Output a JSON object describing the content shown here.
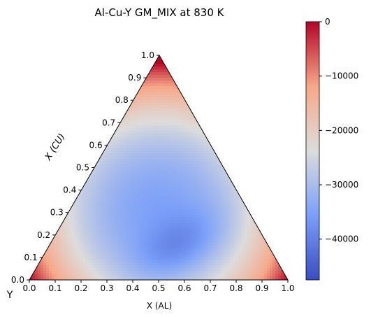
{
  "chart_data": {
    "type": "heatmap",
    "title": "Al-Cu-Y GM_MIX at 830 K",
    "xlabel": "X (AL)",
    "ylabel": "X (CU)",
    "corner_label": "Y",
    "x_ticks": [
      "0.0",
      "0.1",
      "0.2",
      "0.3",
      "0.4",
      "0.5",
      "0.6",
      "0.7",
      "0.8",
      "0.9",
      "1.0"
    ],
    "y_ticks": [
      "0.0",
      "0.1",
      "0.2",
      "0.3",
      "0.4",
      "0.5",
      "0.6",
      "0.7",
      "0.8",
      "0.9",
      "1.0"
    ],
    "colorbar": {
      "min": -47500,
      "max": 0,
      "ticks": [
        0,
        -10000,
        -20000,
        -30000,
        -40000
      ],
      "tick_labels": [
        "0",
        "−10000",
        "−20000",
        "−30000",
        "−40000"
      ],
      "colormap": "coolwarm"
    },
    "field": {
      "description_values": "Gibbs energy of mixing over ternary composition; minimum near X(AL)=0.5, X(CU)=0.15",
      "min_value": -47500,
      "max_value": 0,
      "min_location": {
        "x_al": 0.5,
        "x_cu": 0.15
      }
    },
    "grid": false,
    "legend": "colorbar-right"
  }
}
